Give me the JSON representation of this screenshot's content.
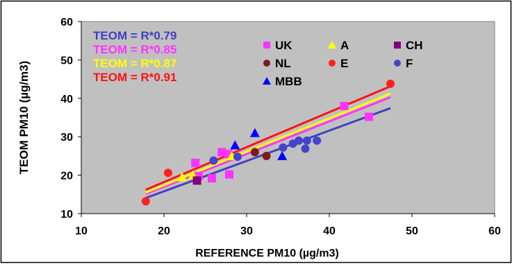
{
  "chart_data": {
    "type": "scatter",
    "xlabel": "REFERENCE PM10 (µg/m3)",
    "ylabel": "TEOM PM10 (µg/m3)",
    "xlim": [
      10,
      60
    ],
    "ylim": [
      10,
      60
    ],
    "xticks": [
      "10",
      "20",
      "30",
      "40",
      "50",
      "60"
    ],
    "yticks": [
      "10",
      "20",
      "30",
      "40",
      "50",
      "60"
    ],
    "plot_background": "#c0c0c0",
    "grid": false,
    "legend_position": "top-center",
    "series": [
      {
        "name": "UK",
        "marker": "square",
        "color": "#ff33ff",
        "points": [
          [
            23.8,
            23.2
          ],
          [
            24.2,
            19.8
          ],
          [
            25.8,
            19.2
          ],
          [
            27.0,
            26.0
          ],
          [
            27.8,
            25.5
          ],
          [
            27.9,
            20.2
          ],
          [
            41.8,
            38.0
          ],
          [
            44.8,
            35.2
          ]
        ]
      },
      {
        "name": "A",
        "marker": "triangle",
        "color": "#ffff00",
        "points": [
          [
            22.2,
            19.5
          ],
          [
            23.5,
            20.0
          ],
          [
            28.2,
            25.0
          ]
        ]
      },
      {
        "name": "CH",
        "marker": "square",
        "color": "#800080",
        "points": [
          [
            24.0,
            18.6
          ]
        ]
      },
      {
        "name": "NL",
        "marker": "circle",
        "color": "#7f1a1a",
        "points": [
          [
            31.0,
            26.0
          ],
          [
            32.4,
            25.0
          ]
        ]
      },
      {
        "name": "E",
        "marker": "circle",
        "color": "#ff2020",
        "points": [
          [
            17.8,
            13.2
          ],
          [
            20.5,
            20.6
          ],
          [
            47.4,
            43.8
          ]
        ]
      },
      {
        "name": "F",
        "marker": "circle",
        "color": "#4444cc",
        "points": [
          [
            26.0,
            23.8
          ],
          [
            34.4,
            27.2
          ],
          [
            35.6,
            28.2
          ],
          [
            36.3,
            29.0
          ],
          [
            37.1,
            26.9
          ],
          [
            37.3,
            29.0
          ],
          [
            38.5,
            29.0
          ],
          [
            28.9,
            24.8
          ]
        ]
      },
      {
        "name": "MBB",
        "marker": "triangle",
        "color": "#0000ff",
        "points": [
          [
            28.6,
            27.8
          ],
          [
            31.0,
            31.0
          ],
          [
            34.3,
            25.0
          ]
        ]
      }
    ],
    "fit_lines": [
      {
        "label": "TEOM = R*0.79",
        "slope": 0.79,
        "color": "#4040c0",
        "x": [
          17.8,
          47.4
        ]
      },
      {
        "label": "TEOM = R*0.85",
        "slope": 0.85,
        "color": "#ff33ff",
        "x": [
          17.8,
          47.4
        ]
      },
      {
        "label": "TEOM = R*0.87",
        "slope": 0.87,
        "color": "#ffff00",
        "x": [
          17.8,
          47.4
        ]
      },
      {
        "label": "TEOM = R*0.91",
        "slope": 0.91,
        "color": "#ff1010",
        "x": [
          17.8,
          47.4
        ]
      }
    ]
  }
}
